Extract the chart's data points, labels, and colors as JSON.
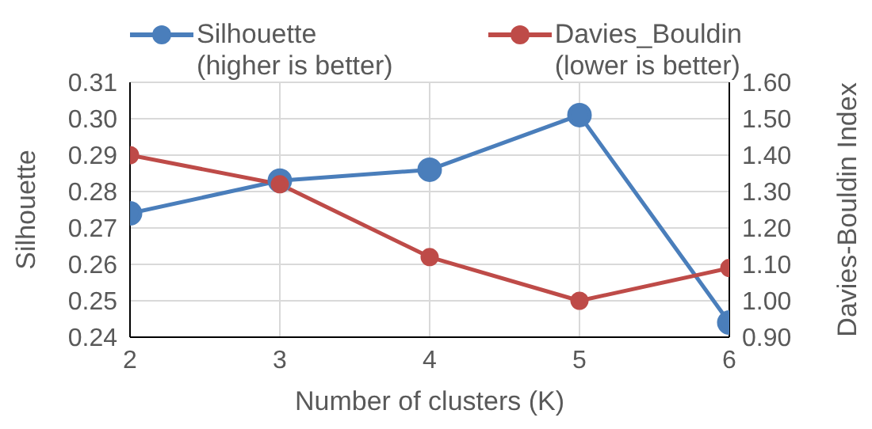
{
  "chart_data": {
    "type": "line",
    "xlabel": "Number of clusters (K)",
    "ylabel": "Silhouette",
    "y2label": "Davies-Bouldin Index",
    "x": [
      2,
      3,
      4,
      5,
      6
    ],
    "xlim": [
      2,
      6
    ],
    "xticks": [
      2,
      3,
      4,
      5,
      6
    ],
    "ylim": [
      0.24,
      0.31
    ],
    "yticks": [
      0.24,
      0.25,
      0.26,
      0.27,
      0.28,
      0.29,
      {
        "value": 0.3,
        "label": "0.30"
      },
      0.31
    ],
    "y2lim": [
      0.9,
      1.6
    ],
    "y2ticks": [
      {
        "value": 0.9,
        "label": "0.90"
      },
      {
        "value": 1.0,
        "label": "1.00"
      },
      {
        "value": 1.1,
        "label": "1.10"
      },
      {
        "value": 1.2,
        "label": "1.20"
      },
      {
        "value": 1.3,
        "label": "1.30"
      },
      {
        "value": 1.4,
        "label": "1.40"
      },
      {
        "value": 1.5,
        "label": "1.50"
      },
      {
        "value": 1.6,
        "label": "1.60"
      }
    ],
    "series": [
      {
        "name": "Silhouette\n(higher is better)",
        "color": "#4a7ebb",
        "values": [
          0.274,
          0.283,
          0.286,
          0.301,
          0.244
        ]
      },
      {
        "name": "Davies_Bouldin\n(lower is better)",
        "color": "#be4b48",
        "axis": "y2",
        "values": [
          1.4,
          1.32,
          1.12,
          1.0,
          1.09
        ]
      }
    ],
    "grid": true,
    "legend": "top",
    "marker": "circle",
    "line_style": "solid"
  }
}
